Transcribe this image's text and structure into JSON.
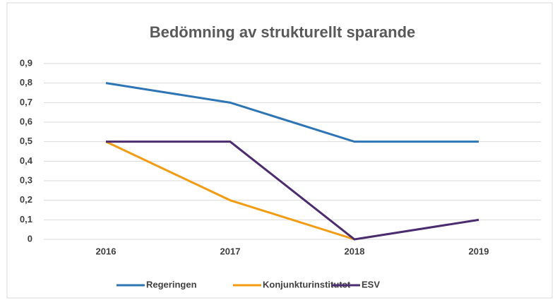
{
  "chart_data": {
    "type": "line",
    "title": "Bedömning av strukturellt sparande",
    "categories": [
      "2016",
      "2017",
      "2018",
      "2019"
    ],
    "series": [
      {
        "name": "Regeringen",
        "color": "#2e75b6",
        "values": [
          0.8,
          0.7,
          0.5,
          0.5
        ]
      },
      {
        "name": "Konjunkturinstitutet",
        "color": "#f39c12",
        "values": [
          0.5,
          0.2,
          0,
          null
        ]
      },
      {
        "name": "ESV",
        "color": "#4b2c6f",
        "values": [
          0.5,
          0.5,
          0,
          0.1
        ]
      }
    ],
    "ylim": [
      0,
      0.9
    ],
    "yticks": [
      0,
      {
        "value": 0.1,
        "label": "0,1"
      },
      {
        "value": 0.2,
        "label": "0,2"
      },
      {
        "value": 0.3,
        "label": "0,3"
      },
      {
        "value": 0.4,
        "label": "0,4"
      },
      {
        "value": 0.5,
        "label": "0,5"
      },
      {
        "value": 0.6,
        "label": "0,6"
      },
      {
        "value": 0.7,
        "label": "0,7"
      },
      {
        "value": 0.8,
        "label": "0,8"
      },
      {
        "value": 0.9,
        "label": "0,9"
      }
    ],
    "grid": true,
    "legend": "bottom"
  }
}
